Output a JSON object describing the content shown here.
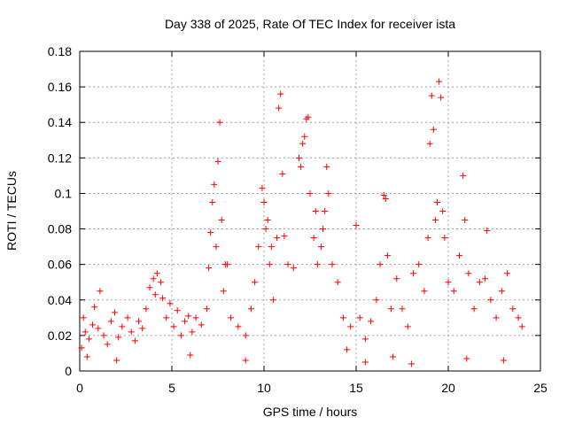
{
  "chart_data": {
    "type": "scatter",
    "title": "Day 338 of 2025, Rate Of TEC Index for receiver ista",
    "xlabel": "GPS time / hours",
    "ylabel": "ROTI / TECUs",
    "xlim": [
      0,
      25
    ],
    "ylim": [
      0,
      0.18
    ],
    "xticks": [
      0,
      5,
      10,
      15,
      20,
      25
    ],
    "xtick_labels": [
      "0",
      "5",
      "10",
      "15",
      "20",
      "25"
    ],
    "yticks": [
      0,
      0.02,
      0.04,
      0.06,
      0.08,
      0.1,
      0.12,
      0.14,
      0.16,
      0.18
    ],
    "ytick_labels": [
      "0",
      "0.02",
      "0.04",
      "0.06",
      "0.08",
      "0.1",
      "0.12",
      "0.14",
      "0.16",
      "0.18"
    ],
    "grid": true,
    "marker": "+",
    "color": "#ff0000",
    "series": [
      {
        "name": "ROTI",
        "points": [
          [
            0.1,
            0.013
          ],
          [
            0.2,
            0.03
          ],
          [
            0.3,
            0.022
          ],
          [
            0.5,
            0.018
          ],
          [
            0.7,
            0.026
          ],
          [
            0.8,
            0.036
          ],
          [
            1.0,
            0.024
          ],
          [
            1.1,
            0.045
          ],
          [
            1.3,
            0.02
          ],
          [
            1.5,
            0.015
          ],
          [
            1.7,
            0.028
          ],
          [
            1.9,
            0.033
          ],
          [
            2.1,
            0.019
          ],
          [
            2.3,
            0.025
          ],
          [
            2.6,
            0.03
          ],
          [
            2.8,
            0.022
          ],
          [
            3.0,
            0.017
          ],
          [
            3.2,
            0.028
          ],
          [
            3.4,
            0.024
          ],
          [
            3.6,
            0.035
          ],
          [
            3.8,
            0.047
          ],
          [
            4.0,
            0.052
          ],
          [
            4.1,
            0.043
          ],
          [
            4.2,
            0.055
          ],
          [
            4.4,
            0.05
          ],
          [
            4.5,
            0.041
          ],
          [
            4.7,
            0.03
          ],
          [
            4.9,
            0.038
          ],
          [
            5.1,
            0.025
          ],
          [
            5.3,
            0.034
          ],
          [
            5.5,
            0.02
          ],
          [
            5.7,
            0.028
          ],
          [
            5.9,
            0.031
          ],
          [
            6.1,
            0.022
          ],
          [
            6.3,
            0.03
          ],
          [
            6.6,
            0.026
          ],
          [
            6.9,
            0.035
          ],
          [
            7.0,
            0.058
          ],
          [
            7.1,
            0.078
          ],
          [
            7.2,
            0.095
          ],
          [
            7.3,
            0.105
          ],
          [
            7.4,
            0.07
          ],
          [
            7.5,
            0.118
          ],
          [
            7.6,
            0.14
          ],
          [
            7.7,
            0.085
          ],
          [
            7.8,
            0.045
          ],
          [
            8.0,
            0.06
          ],
          [
            8.2,
            0.03
          ],
          [
            8.6,
            0.025
          ],
          [
            9.0,
            0.02
          ],
          [
            9.3,
            0.035
          ],
          [
            9.5,
            0.05
          ],
          [
            9.7,
            0.07
          ],
          [
            9.9,
            0.103
          ],
          [
            10.0,
            0.095
          ],
          [
            10.1,
            0.08
          ],
          [
            10.2,
            0.085
          ],
          [
            10.3,
            0.06
          ],
          [
            10.5,
            0.04
          ],
          [
            10.7,
            0.075
          ],
          [
            10.8,
            0.148
          ],
          [
            10.9,
            0.156
          ],
          [
            11.0,
            0.111
          ],
          [
            11.1,
            0.076
          ],
          [
            11.3,
            0.06
          ],
          [
            11.6,
            0.058
          ],
          [
            11.9,
            0.12
          ],
          [
            12.0,
            0.115
          ],
          [
            12.1,
            0.128
          ],
          [
            12.2,
            0.132
          ],
          [
            12.3,
            0.142
          ],
          [
            12.4,
            0.143
          ],
          [
            12.5,
            0.1
          ],
          [
            12.7,
            0.075
          ],
          [
            12.9,
            0.06
          ],
          [
            13.1,
            0.07
          ],
          [
            13.3,
            0.09
          ],
          [
            13.4,
            0.115
          ],
          [
            13.5,
            0.1
          ],
          [
            13.7,
            0.06
          ],
          [
            14.0,
            0.05
          ],
          [
            14.3,
            0.03
          ],
          [
            14.7,
            0.025
          ],
          [
            15.0,
            0.082
          ],
          [
            15.2,
            0.03
          ],
          [
            15.5,
            0.018
          ],
          [
            15.8,
            0.028
          ],
          [
            16.1,
            0.04
          ],
          [
            16.3,
            0.06
          ],
          [
            16.5,
            0.099
          ],
          [
            16.6,
            0.097
          ],
          [
            16.7,
            0.065
          ],
          [
            16.9,
            0.035
          ],
          [
            17.2,
            0.052
          ],
          [
            17.5,
            0.035
          ],
          [
            17.8,
            0.025
          ],
          [
            18.1,
            0.055
          ],
          [
            18.4,
            0.06
          ],
          [
            18.7,
            0.045
          ],
          [
            18.9,
            0.075
          ],
          [
            19.0,
            0.128
          ],
          [
            19.1,
            0.155
          ],
          [
            19.2,
            0.136
          ],
          [
            19.3,
            0.085
          ],
          [
            19.4,
            0.095
          ],
          [
            19.5,
            0.163
          ],
          [
            19.6,
            0.154
          ],
          [
            19.7,
            0.09
          ],
          [
            20.0,
            0.05
          ],
          [
            20.3,
            0.045
          ],
          [
            20.6,
            0.065
          ],
          [
            20.8,
            0.11
          ],
          [
            20.9,
            0.085
          ],
          [
            21.1,
            0.055
          ],
          [
            21.4,
            0.035
          ],
          [
            21.7,
            0.05
          ],
          [
            22.0,
            0.052
          ],
          [
            22.1,
            0.079
          ],
          [
            22.3,
            0.04
          ],
          [
            22.6,
            0.03
          ],
          [
            22.9,
            0.045
          ],
          [
            23.2,
            0.055
          ],
          [
            23.5,
            0.035
          ],
          [
            23.8,
            0.03
          ],
          [
            24.0,
            0.025
          ],
          [
            0.4,
            0.008
          ],
          [
            2.0,
            0.006
          ],
          [
            6.0,
            0.009
          ],
          [
            9.0,
            0.006
          ],
          [
            15.5,
            0.005
          ],
          [
            17.0,
            0.008
          ],
          [
            18.0,
            0.004
          ],
          [
            21.0,
            0.007
          ],
          [
            23.0,
            0.006
          ],
          [
            14.5,
            0.012
          ],
          [
            12.8,
            0.09
          ],
          [
            13.2,
            0.08
          ],
          [
            19.8,
            0.075
          ],
          [
            7.9,
            0.06
          ],
          [
            10.4,
            0.07
          ]
        ]
      }
    ]
  }
}
